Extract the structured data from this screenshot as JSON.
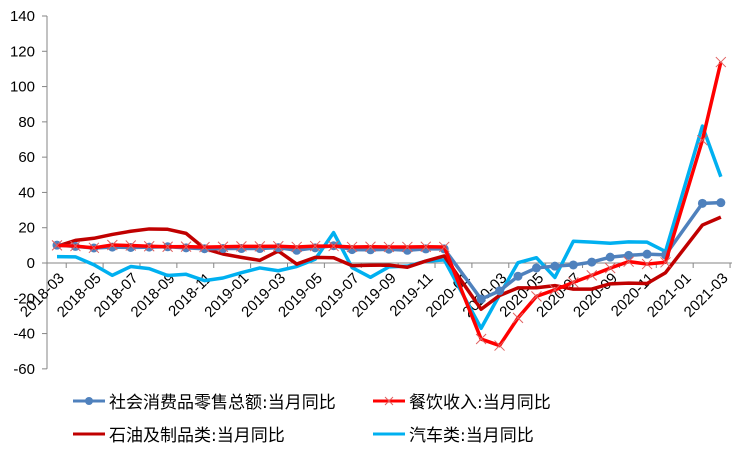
{
  "chart_data": {
    "type": "line",
    "title": "",
    "xlabel": "",
    "ylabel": "",
    "ylim": [
      -60,
      140
    ],
    "yticks": [
      -60,
      -40,
      -20,
      0,
      20,
      40,
      60,
      80,
      100,
      120,
      140
    ],
    "grid": false,
    "legend_position": "bottom",
    "x": [
      "2018-03",
      "2018-04",
      "2018-05",
      "2018-06",
      "2018-07",
      "2018-08",
      "2018-09",
      "2018-10",
      "2018-11",
      "2018-12",
      "2019-01",
      "2019-02",
      "2019-03",
      "2019-04",
      "2019-05",
      "2019-06",
      "2019-07",
      "2019-08",
      "2019-09",
      "2019-10",
      "2019-11",
      "2019-12",
      "2020-02",
      "2020-03",
      "2020-04",
      "2020-05",
      "2020-06",
      "2020-07",
      "2020-08",
      "2020-09",
      "2020-10",
      "2020-11",
      "2020-12",
      "2021-02",
      "2021-03"
    ],
    "x_positions": [
      0,
      1,
      2,
      3,
      4,
      5,
      6,
      7,
      8,
      9,
      10,
      11,
      12,
      13,
      14,
      15,
      16,
      17,
      18,
      19,
      20,
      21,
      23,
      24,
      25,
      26,
      27,
      28,
      29,
      30,
      31,
      32,
      33,
      35,
      36
    ],
    "xtick_labels": [
      "2018-03",
      "2018-05",
      "2018-07",
      "2018-09",
      "2018-11",
      "2019-01",
      "2019-03",
      "2019-05",
      "2019-07",
      "2019-09",
      "2019-11",
      "2020-01",
      "2020-03",
      "2020-05",
      "2020-07",
      "2020-09",
      "2020-11",
      "2021-01",
      "2021-03"
    ],
    "series": [
      {
        "name": "社会消费品零售总额:当月同比",
        "color": "#4F81BD",
        "marker": "circle",
        "values": [
          10.1,
          9.4,
          8.5,
          9.0,
          8.8,
          9.0,
          9.2,
          8.6,
          8.1,
          8.2,
          8.2,
          8.2,
          8.7,
          7.2,
          8.6,
          9.8,
          7.6,
          7.5,
          7.8,
          7.2,
          8.0,
          8.0,
          -20.5,
          -15.8,
          -7.5,
          -2.8,
          -1.8,
          -1.1,
          0.5,
          3.3,
          4.3,
          5.0,
          4.6,
          33.8,
          34.2
        ]
      },
      {
        "name": "餐饮收入:当月同比",
        "color": "#FF0000",
        "marker": "x",
        "values": [
          10.0,
          9.6,
          8.6,
          10.2,
          9.9,
          9.5,
          9.2,
          9.3,
          9.0,
          9.2,
          9.4,
          9.4,
          9.5,
          9.1,
          9.6,
          9.6,
          9.1,
          9.2,
          9.1,
          9.1,
          9.2,
          9.1,
          -43.1,
          -46.8,
          -31.1,
          -18.9,
          -15.2,
          -11.0,
          -7.0,
          -2.9,
          0.8,
          -0.6,
          0.4,
          69.6,
          113.9
        ]
      },
      {
        "name": "石油及制品类:当月同比",
        "color": "#C00000",
        "marker": "none",
        "values": [
          9.5,
          12.8,
          14.0,
          16.2,
          18.0,
          19.3,
          19.1,
          16.8,
          8.2,
          5.1,
          3.2,
          1.5,
          6.8,
          -0.6,
          3.2,
          3.0,
          -1.5,
          -1.3,
          -1.2,
          -2.4,
          1.1,
          4.0,
          -26.2,
          -18.4,
          -14.1,
          -14.0,
          -12.8,
          -14.8,
          -14.8,
          -11.8,
          -11.4,
          -11.6,
          -5.5,
          21.5,
          26.0
        ]
      },
      {
        "name": "汽车类:当月同比",
        "color": "#00B0F0",
        "marker": "none",
        "values": [
          3.6,
          3.5,
          -1.0,
          -7.0,
          -2.0,
          -3.2,
          -7.1,
          -6.4,
          -10.0,
          -8.5,
          -5.5,
          -2.8,
          -4.4,
          -2.0,
          2.1,
          17.2,
          -2.6,
          -8.1,
          -2.2,
          -1.8,
          1.0,
          1.8,
          -37.0,
          -18.1,
          0.2,
          3.0,
          -8.2,
          12.3,
          11.8,
          11.2,
          12.0,
          11.8,
          6.5,
          77.6,
          48.9
        ]
      }
    ]
  },
  "legend": {
    "item1": "社会消费品零售总额:当月同比",
    "item2": "餐饮收入:当月同比",
    "item3": "石油及制品类:当月同比",
    "item4": "汽车类:当月同比"
  }
}
